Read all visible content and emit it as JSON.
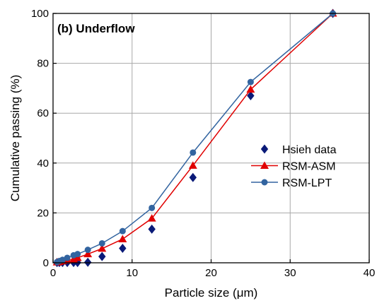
{
  "chart_data": {
    "type": "scatter",
    "panel_label": "(b) Underflow",
    "xlabel": "Particle size (μm)",
    "ylabel": "Cumulative passing (%)",
    "xlim": [
      0,
      40
    ],
    "ylim": [
      0,
      100
    ],
    "xticks": [
      "0",
      "10",
      "20",
      "30",
      "40"
    ],
    "yticks": [
      "0",
      "20",
      "40",
      "60",
      "80",
      "100"
    ],
    "grid": true,
    "legend_position": "right",
    "series": [
      {
        "name": "Hsieh data",
        "marker": "diamond",
        "line": false,
        "color": "#0a1a78",
        "x": [
          0.5,
          0.8,
          1.2,
          1.8,
          2.6,
          3.1,
          4.4,
          6.2,
          8.8,
          12.5,
          17.7,
          25.0,
          35.4
        ],
        "y": [
          0.1,
          0.1,
          0.1,
          0.1,
          0.1,
          0.1,
          0.2,
          2.5,
          5.8,
          13.5,
          34.2,
          67.0,
          100.0
        ]
      },
      {
        "name": "RSM-ASM",
        "marker": "triangle",
        "line": true,
        "color": "#e00000",
        "x": [
          0.5,
          0.8,
          1.2,
          1.8,
          2.6,
          3.1,
          4.4,
          6.2,
          8.8,
          12.5,
          17.7,
          25.0,
          35.4
        ],
        "y": [
          0.2,
          0.4,
          0.7,
          1.0,
          1.4,
          2.0,
          3.5,
          5.7,
          9.5,
          17.8,
          39.0,
          69.5,
          100.0
        ]
      },
      {
        "name": "RSM-LPT",
        "marker": "circle",
        "line": true,
        "color": "#3264a0",
        "x": [
          0.5,
          0.8,
          1.2,
          1.8,
          2.6,
          3.1,
          4.4,
          6.2,
          8.8,
          12.5,
          17.7,
          25.0,
          35.4
        ],
        "y": [
          0.3,
          0.7,
          1.2,
          2.0,
          3.0,
          3.5,
          5.2,
          7.8,
          12.7,
          22.0,
          44.2,
          72.5,
          100.0
        ]
      }
    ]
  }
}
